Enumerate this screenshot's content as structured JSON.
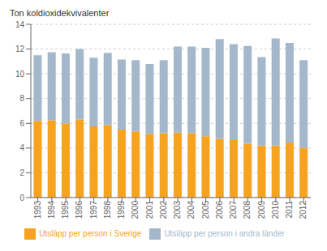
{
  "chart_data": {
    "type": "bar",
    "stacked": true,
    "ylabel": "Ton koldioxidekvivalenter",
    "categories": [
      "1993",
      "1994",
      "1995",
      "1996",
      "1997",
      "1998",
      "1999",
      "2000",
      "2001",
      "2002",
      "2003",
      "2004",
      "2005",
      "2006",
      "2007",
      "2008",
      "2009",
      "2010",
      "2011",
      "2012"
    ],
    "series": [
      {
        "name": "Utsläpp per person i Sverige",
        "color": "#F5A320",
        "values": [
          6.2,
          6.25,
          6.0,
          6.3,
          5.75,
          5.85,
          5.5,
          5.35,
          5.15,
          5.2,
          5.25,
          5.2,
          4.95,
          4.75,
          4.65,
          4.35,
          4.2,
          4.2,
          4.45,
          4.0
        ]
      },
      {
        "name": "Utsläpp per person i andra länder",
        "color": "#A4B8CC",
        "values": [
          5.3,
          5.5,
          5.65,
          5.7,
          5.55,
          5.85,
          5.65,
          5.75,
          5.65,
          5.9,
          6.95,
          7.0,
          7.15,
          8.05,
          7.75,
          7.9,
          7.15,
          8.65,
          8.05,
          7.1
        ]
      }
    ],
    "ylim": [
      0,
      14
    ],
    "yticks": [
      0,
      2,
      4,
      6,
      8,
      10,
      12,
      14
    ],
    "grid": true,
    "legend": "bottom"
  }
}
